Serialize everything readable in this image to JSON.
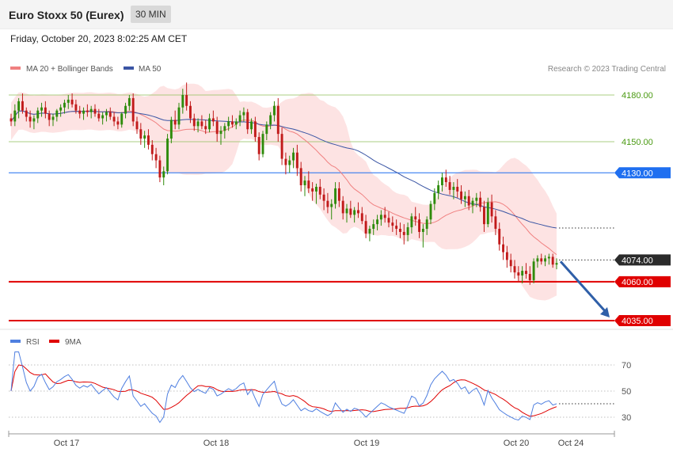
{
  "header": {
    "title": "Euro Stoxx 50 (Eurex)",
    "timeframe": "30 MIN",
    "datetime": "Friday, October 20, 2023 8:02:25 AM CET"
  },
  "legend": {
    "bb_label": "MA 20 + Bollinger Bands",
    "ma50_label": "MA 50",
    "credit": "Research © 2023 Trading Central",
    "rsi_label": "RSI",
    "rsi_ma_label": "9MA"
  },
  "colors": {
    "bull": "#2e8b0b",
    "bear": "#c11a1a",
    "bb_fill": "#fde0e0",
    "ma20": "#f08080",
    "ma50": "#3a55a4",
    "support": "#e00000",
    "pivot": "#1f6ff0",
    "resistance": "#8fbf5a",
    "rsi": "#4f7fe0",
    "rsi_ma": "#e00000",
    "arrow": "#2f5fa8"
  },
  "chart_data": [
    {
      "type": "candlestick",
      "instrument": "Euro Stoxx 50 (Eurex)",
      "interval": "30 MIN",
      "y_range": [
        4020,
        4195
      ],
      "x_ticks": [
        "Oct 17",
        "Oct 18",
        "Oct 19",
        "Oct 20",
        "Oct 24"
      ],
      "levels": [
        {
          "value": 4180.0,
          "label": "4180.00",
          "kind": "resistance"
        },
        {
          "value": 4150.0,
          "label": "4150.00",
          "kind": "resistance"
        },
        {
          "value": 4130.0,
          "label": "4130.00",
          "kind": "pivot"
        },
        {
          "value": 4074.0,
          "label": "4074.00",
          "kind": "last"
        },
        {
          "value": 4060.0,
          "label": "4060.00",
          "kind": "support"
        },
        {
          "value": 4035.0,
          "label": "4035.00",
          "kind": "support"
        }
      ],
      "projection": {
        "from": 4073,
        "to": 4035
      },
      "candles": [
        [
          4165,
          4168,
          4160,
          4163
        ],
        [
          4163,
          4174,
          4160,
          4170
        ],
        [
          4170,
          4178,
          4165,
          4176
        ],
        [
          4176,
          4181,
          4168,
          4170
        ],
        [
          4170,
          4172,
          4163,
          4166
        ],
        [
          4166,
          4170,
          4159,
          4163
        ],
        [
          4163,
          4167,
          4158,
          4165
        ],
        [
          4165,
          4172,
          4162,
          4170
        ],
        [
          4170,
          4175,
          4166,
          4172
        ],
        [
          4172,
          4176,
          4165,
          4168
        ],
        [
          4168,
          4170,
          4160,
          4164
        ],
        [
          4164,
          4168,
          4160,
          4166
        ],
        [
          4166,
          4171,
          4163,
          4170
        ],
        [
          4170,
          4174,
          4166,
          4172
        ],
        [
          4172,
          4177,
          4168,
          4175
        ],
        [
          4175,
          4180,
          4171,
          4177
        ],
        [
          4177,
          4181,
          4172,
          4174
        ],
        [
          4174,
          4177,
          4168,
          4170
        ],
        [
          4170,
          4173,
          4165,
          4168
        ],
        [
          4168,
          4172,
          4164,
          4170
        ],
        [
          4170,
          4174,
          4166,
          4169
        ],
        [
          4169,
          4173,
          4165,
          4171
        ],
        [
          4171,
          4174,
          4166,
          4168
        ],
        [
          4168,
          4171,
          4163,
          4165
        ],
        [
          4165,
          4169,
          4161,
          4167
        ],
        [
          4167,
          4171,
          4163,
          4169
        ],
        [
          4169,
          4172,
          4164,
          4166
        ],
        [
          4166,
          4169,
          4160,
          4163
        ],
        [
          4163,
          4166,
          4158,
          4161
        ],
        [
          4161,
          4169,
          4159,
          4168
        ],
        [
          4168,
          4175,
          4165,
          4173
        ],
        [
          4173,
          4180,
          4170,
          4178
        ],
        [
          4178,
          4181,
          4160,
          4163
        ],
        [
          4163,
          4166,
          4155,
          4158
        ],
        [
          4158,
          4162,
          4148,
          4152
        ],
        [
          4152,
          4157,
          4146,
          4154
        ],
        [
          4154,
          4158,
          4145,
          4148
        ],
        [
          4148,
          4151,
          4138,
          4142
        ],
        [
          4142,
          4146,
          4133,
          4138
        ],
        [
          4138,
          4141,
          4124,
          4127
        ],
        [
          4127,
          4134,
          4122,
          4131
        ],
        [
          4131,
          4155,
          4129,
          4152
        ],
        [
          4152,
          4166,
          4149,
          4164
        ],
        [
          4164,
          4170,
          4158,
          4161
        ],
        [
          4161,
          4175,
          4158,
          4172
        ],
        [
          4172,
          4184,
          4168,
          4180
        ],
        [
          4180,
          4188,
          4170,
          4173
        ],
        [
          4173,
          4176,
          4162,
          4165
        ],
        [
          4165,
          4168,
          4157,
          4160
        ],
        [
          4160,
          4165,
          4156,
          4163
        ],
        [
          4163,
          4167,
          4158,
          4160
        ],
        [
          4160,
          4164,
          4155,
          4158
        ],
        [
          4158,
          4168,
          4156,
          4165
        ],
        [
          4165,
          4170,
          4160,
          4163
        ],
        [
          4163,
          4166,
          4150,
          4155
        ],
        [
          4155,
          4160,
          4148,
          4157
        ],
        [
          4157,
          4162,
          4152,
          4160
        ],
        [
          4160,
          4166,
          4157,
          4163
        ],
        [
          4163,
          4167,
          4159,
          4161
        ],
        [
          4161,
          4165,
          4158,
          4163
        ],
        [
          4163,
          4170,
          4160,
          4167
        ],
        [
          4167,
          4172,
          4163,
          4169
        ],
        [
          4169,
          4171,
          4155,
          4158
        ],
        [
          4158,
          4165,
          4155,
          4163
        ],
        [
          4163,
          4166,
          4150,
          4153
        ],
        [
          4153,
          4156,
          4138,
          4142
        ],
        [
          4142,
          4157,
          4140,
          4155
        ],
        [
          4155,
          4163,
          4151,
          4161
        ],
        [
          4161,
          4169,
          4158,
          4167
        ],
        [
          4167,
          4176,
          4163,
          4173
        ],
        [
          4173,
          4178,
          4150,
          4155
        ],
        [
          4155,
          4159,
          4135,
          4139
        ],
        [
          4139,
          4143,
          4129,
          4135
        ],
        [
          4135,
          4141,
          4130,
          4138
        ],
        [
          4138,
          4146,
          4133,
          4143
        ],
        [
          4143,
          4148,
          4128,
          4133
        ],
        [
          4133,
          4137,
          4118,
          4122
        ],
        [
          4122,
          4128,
          4115,
          4125
        ],
        [
          4125,
          4131,
          4117,
          4120
        ],
        [
          4120,
          4124,
          4112,
          4118
        ],
        [
          4118,
          4123,
          4110,
          4121
        ],
        [
          4121,
          4126,
          4113,
          4116
        ],
        [
          4116,
          4120,
          4106,
          4112
        ],
        [
          4112,
          4117,
          4104,
          4108
        ],
        [
          4108,
          4113,
          4100,
          4110
        ],
        [
          4110,
          4124,
          4107,
          4120
        ],
        [
          4120,
          4124,
          4108,
          4112
        ],
        [
          4112,
          4115,
          4100,
          4104
        ],
        [
          4104,
          4110,
          4098,
          4107
        ],
        [
          4107,
          4112,
          4101,
          4103
        ],
        [
          4103,
          4108,
          4098,
          4106
        ],
        [
          4106,
          4111,
          4101,
          4104
        ],
        [
          4104,
          4108,
          4097,
          4099
        ],
        [
          4099,
          4103,
          4088,
          4091
        ],
        [
          4091,
          4096,
          4086,
          4094
        ],
        [
          4094,
          4100,
          4090,
          4097
        ],
        [
          4097,
          4103,
          4093,
          4100
        ],
        [
          4100,
          4106,
          4096,
          4103
        ],
        [
          4103,
          4108,
          4098,
          4101
        ],
        [
          4101,
          4105,
          4095,
          4098
        ],
        [
          4098,
          4102,
          4092,
          4096
        ],
        [
          4096,
          4100,
          4090,
          4094
        ],
        [
          4094,
          4098,
          4088,
          4092
        ],
        [
          4092,
          4097,
          4084,
          4090
        ],
        [
          4090,
          4098,
          4086,
          4095
        ],
        [
          4095,
          4104,
          4091,
          4102
        ],
        [
          4102,
          4108,
          4096,
          4100
        ],
        [
          4100,
          4104,
          4088,
          4092
        ],
        [
          4092,
          4097,
          4082,
          4094
        ],
        [
          4094,
          4102,
          4090,
          4100
        ],
        [
          4100,
          4112,
          4097,
          4110
        ],
        [
          4110,
          4120,
          4106,
          4117
        ],
        [
          4117,
          4125,
          4113,
          4122
        ],
        [
          4122,
          4130,
          4118,
          4127
        ],
        [
          4127,
          4132,
          4121,
          4124
        ],
        [
          4124,
          4128,
          4116,
          4119
        ],
        [
          4119,
          4124,
          4113,
          4121
        ],
        [
          4121,
          4126,
          4114,
          4118
        ],
        [
          4118,
          4122,
          4110,
          4113
        ],
        [
          4113,
          4118,
          4108,
          4115
        ],
        [
          4115,
          4119,
          4106,
          4109
        ],
        [
          4109,
          4114,
          4104,
          4112
        ],
        [
          4112,
          4117,
          4108,
          4114
        ],
        [
          4114,
          4118,
          4105,
          4108
        ],
        [
          4108,
          4112,
          4092,
          4097
        ],
        [
          4097,
          4114,
          4095,
          4111
        ],
        [
          4111,
          4116,
          4098,
          4102
        ],
        [
          4102,
          4106,
          4090,
          4094
        ],
        [
          4094,
          4098,
          4080,
          4084
        ],
        [
          4084,
          4089,
          4074,
          4079
        ],
        [
          4079,
          4083,
          4069,
          4074
        ],
        [
          4074,
          4078,
          4066,
          4070
        ],
        [
          4070,
          4074,
          4062,
          4066
        ],
        [
          4066,
          4070,
          4060,
          4064
        ],
        [
          4064,
          4070,
          4059,
          4067
        ],
        [
          4067,
          4072,
          4062,
          4065
        ],
        [
          4065,
          4070,
          4058,
          4061
        ],
        [
          4061,
          4075,
          4059,
          4073
        ],
        [
          4073,
          4077,
          4069,
          4075
        ],
        [
          4075,
          4078,
          4071,
          4073
        ],
        [
          4073,
          4077,
          4070,
          4075
        ],
        [
          4075,
          4078,
          4071,
          4076
        ],
        [
          4076,
          4078,
          4069,
          4071
        ],
        [
          4071,
          4075,
          4068,
          4072
        ]
      ]
    },
    {
      "type": "line",
      "name": "RSI",
      "y_ticks": [
        30,
        50,
        70
      ],
      "y_range": [
        18,
        82
      ]
    }
  ]
}
